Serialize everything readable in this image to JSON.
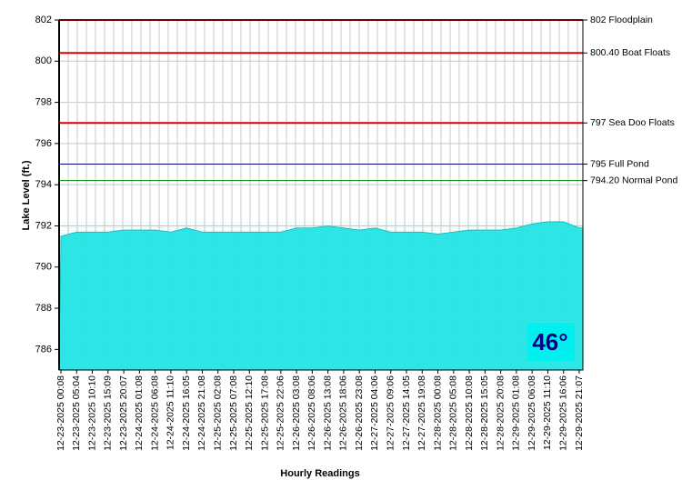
{
  "chart_data": {
    "type": "area",
    "y_label": "Lake Level (ft.)",
    "x_label": "Hourly Readings",
    "annotation": "46°",
    "color": "#2ee6e6",
    "grid": true,
    "ylim": [
      785,
      802
    ],
    "yticks": [
      786,
      788,
      790,
      792,
      794,
      796,
      798,
      800,
      802
    ],
    "reference_lines": [
      {
        "value": 802,
        "label": "802 Floodplain",
        "color": "#e00000"
      },
      {
        "value": 800.4,
        "label": "800.40 Boat Floats",
        "color": "#e00000"
      },
      {
        "value": 797,
        "label": "797 Sea Doo Floats",
        "color": "#e00000"
      },
      {
        "value": 795,
        "label": "795 Full Pond",
        "color": "#000080"
      },
      {
        "value": 794.2,
        "label": "794.20 Normal Pond",
        "color": "#008000"
      }
    ],
    "categories": [
      "12-23-2025 00:08",
      "12-23-2025 05:04",
      "12-23-2025 10:10",
      "12-23-2025 15:09",
      "12-23-2025 20:07",
      "12-24-2025 01:08",
      "12-24-2025 06:08",
      "12-24-2025 11:10",
      "12-24-2025 16:05",
      "12-24-2025 21:08",
      "12-25-2025 02:08",
      "12-25-2025 07:08",
      "12-25-2025 12:10",
      "12-25-2025 17:08",
      "12-25-2025 22:06",
      "12-26-2025 03:08",
      "12-26-2025 08:06",
      "12-26-2025 13:08",
      "12-26-2025 18:06",
      "12-26-2025 23:08",
      "12-27-2025 04:06",
      "12-27-2025 09:06",
      "12-27-2025 14:05",
      "12-27-2025 19:08",
      "12-28-2025 00:08",
      "12-28-2025 05:08",
      "12-28-2025 10:08",
      "12-28-2025 15:05",
      "12-28-2025 20:08",
      "12-29-2025 01:08",
      "12-29-2025 06:08",
      "12-29-2025 11:10",
      "12-29-2025 16:06",
      "12-29-2025 21:07"
    ],
    "values": [
      791.5,
      791.7,
      791.7,
      791.7,
      791.8,
      791.8,
      791.8,
      791.7,
      791.9,
      791.7,
      791.7,
      791.7,
      791.7,
      791.7,
      791.7,
      791.9,
      791.9,
      792.0,
      791.9,
      791.8,
      791.9,
      791.7,
      791.7,
      791.7,
      791.6,
      791.7,
      791.8,
      791.8,
      791.8,
      791.9,
      792.1,
      792.2,
      792.2,
      791.9
    ]
  }
}
